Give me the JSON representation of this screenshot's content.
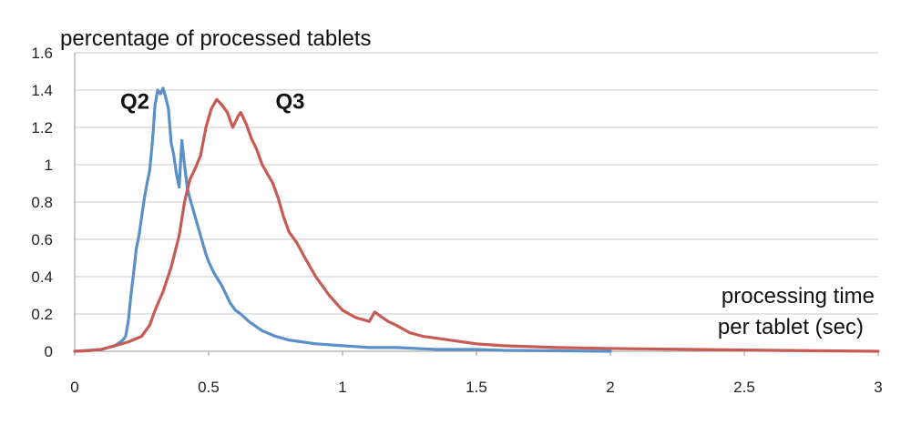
{
  "chart_data": {
    "type": "line",
    "ylabel": "percentage of processed tablets",
    "xlabel_lines": [
      "processing time",
      "per tablet (sec)"
    ],
    "xlim": [
      0,
      3
    ],
    "ylim": [
      0,
      1.6
    ],
    "x_ticks": [
      {
        "value": 0,
        "label": "0"
      },
      {
        "value": 0.5,
        "label": "0.5"
      },
      {
        "value": 1,
        "label": "1"
      },
      {
        "value": 1.5,
        "label": "1.5"
      },
      {
        "value": 2,
        "label": "2"
      },
      {
        "value": 2.5,
        "label": "2.5"
      },
      {
        "value": 3,
        "label": "3"
      }
    ],
    "y_ticks": [
      {
        "value": 0,
        "label": "0"
      },
      {
        "value": 0.2,
        "label": "0.2"
      },
      {
        "value": 0.4,
        "label": "0.4"
      },
      {
        "value": 0.6,
        "label": "0.6"
      },
      {
        "value": 0.8,
        "label": "0.8"
      },
      {
        "value": 1,
        "label": "1"
      },
      {
        "value": 1.2,
        "label": "1.2"
      },
      {
        "value": 1.4,
        "label": "1.4"
      },
      {
        "value": 1.6,
        "label": "1.6"
      }
    ],
    "grid": "horizontal",
    "legend": "inline labels",
    "series": [
      {
        "name": "Q2",
        "color": "#5b8fc7",
        "points": [
          [
            0,
            0
          ],
          [
            0.05,
            0.005
          ],
          [
            0.1,
            0.01
          ],
          [
            0.15,
            0.03
          ],
          [
            0.18,
            0.06
          ],
          [
            0.19,
            0.08
          ],
          [
            0.2,
            0.16
          ],
          [
            0.21,
            0.3
          ],
          [
            0.22,
            0.42
          ],
          [
            0.23,
            0.55
          ],
          [
            0.24,
            0.62
          ],
          [
            0.25,
            0.72
          ],
          [
            0.26,
            0.82
          ],
          [
            0.27,
            0.9
          ],
          [
            0.28,
            0.97
          ],
          [
            0.29,
            1.12
          ],
          [
            0.3,
            1.32
          ],
          [
            0.31,
            1.4
          ],
          [
            0.32,
            1.38
          ],
          [
            0.33,
            1.41
          ],
          [
            0.34,
            1.36
          ],
          [
            0.35,
            1.3
          ],
          [
            0.36,
            1.12
          ],
          [
            0.37,
            1.05
          ],
          [
            0.38,
            0.95
          ],
          [
            0.39,
            0.88
          ],
          [
            0.4,
            1.13
          ],
          [
            0.41,
            1.0
          ],
          [
            0.42,
            0.88
          ],
          [
            0.43,
            0.82
          ],
          [
            0.45,
            0.72
          ],
          [
            0.47,
            0.62
          ],
          [
            0.49,
            0.52
          ],
          [
            0.5,
            0.48
          ],
          [
            0.52,
            0.42
          ],
          [
            0.55,
            0.35
          ],
          [
            0.58,
            0.26
          ],
          [
            0.6,
            0.22
          ],
          [
            0.62,
            0.2
          ],
          [
            0.65,
            0.16
          ],
          [
            0.7,
            0.11
          ],
          [
            0.75,
            0.08
          ],
          [
            0.8,
            0.06
          ],
          [
            0.85,
            0.05
          ],
          [
            0.9,
            0.04
          ],
          [
            1.0,
            0.03
          ],
          [
            1.1,
            0.02
          ],
          [
            1.2,
            0.02
          ],
          [
            1.35,
            0.01
          ],
          [
            1.5,
            0.01
          ],
          [
            1.6,
            0.005
          ],
          [
            2.0,
            0.0
          ]
        ]
      },
      {
        "name": "Q3",
        "color": "#c85a55",
        "points": [
          [
            0,
            0
          ],
          [
            0.05,
            0.003
          ],
          [
            0.1,
            0.01
          ],
          [
            0.15,
            0.03
          ],
          [
            0.2,
            0.05
          ],
          [
            0.25,
            0.08
          ],
          [
            0.28,
            0.14
          ],
          [
            0.3,
            0.22
          ],
          [
            0.33,
            0.32
          ],
          [
            0.36,
            0.45
          ],
          [
            0.39,
            0.62
          ],
          [
            0.41,
            0.8
          ],
          [
            0.43,
            0.92
          ],
          [
            0.45,
            0.98
          ],
          [
            0.47,
            1.05
          ],
          [
            0.49,
            1.2
          ],
          [
            0.51,
            1.3
          ],
          [
            0.53,
            1.35
          ],
          [
            0.55,
            1.32
          ],
          [
            0.57,
            1.28
          ],
          [
            0.59,
            1.2
          ],
          [
            0.61,
            1.26
          ],
          [
            0.62,
            1.28
          ],
          [
            0.64,
            1.22
          ],
          [
            0.66,
            1.14
          ],
          [
            0.68,
            1.08
          ],
          [
            0.7,
            1.0
          ],
          [
            0.72,
            0.95
          ],
          [
            0.74,
            0.9
          ],
          [
            0.76,
            0.82
          ],
          [
            0.78,
            0.72
          ],
          [
            0.8,
            0.64
          ],
          [
            0.83,
            0.58
          ],
          [
            0.86,
            0.5
          ],
          [
            0.9,
            0.4
          ],
          [
            0.95,
            0.3
          ],
          [
            1.0,
            0.22
          ],
          [
            1.05,
            0.18
          ],
          [
            1.1,
            0.16
          ],
          [
            1.12,
            0.21
          ],
          [
            1.14,
            0.19
          ],
          [
            1.17,
            0.16
          ],
          [
            1.2,
            0.14
          ],
          [
            1.25,
            0.1
          ],
          [
            1.3,
            0.08
          ],
          [
            1.4,
            0.06
          ],
          [
            1.5,
            0.04
          ],
          [
            1.6,
            0.03
          ],
          [
            1.8,
            0.02
          ],
          [
            2.0,
            0.015
          ],
          [
            2.3,
            0.01
          ],
          [
            2.6,
            0.005
          ],
          [
            3.0,
            0.0
          ]
        ]
      }
    ],
    "series_labels": [
      {
        "text": "Q2",
        "x": 0.17,
        "y": 1.3
      },
      {
        "text": "Q3",
        "x": 0.75,
        "y": 1.3
      }
    ]
  }
}
